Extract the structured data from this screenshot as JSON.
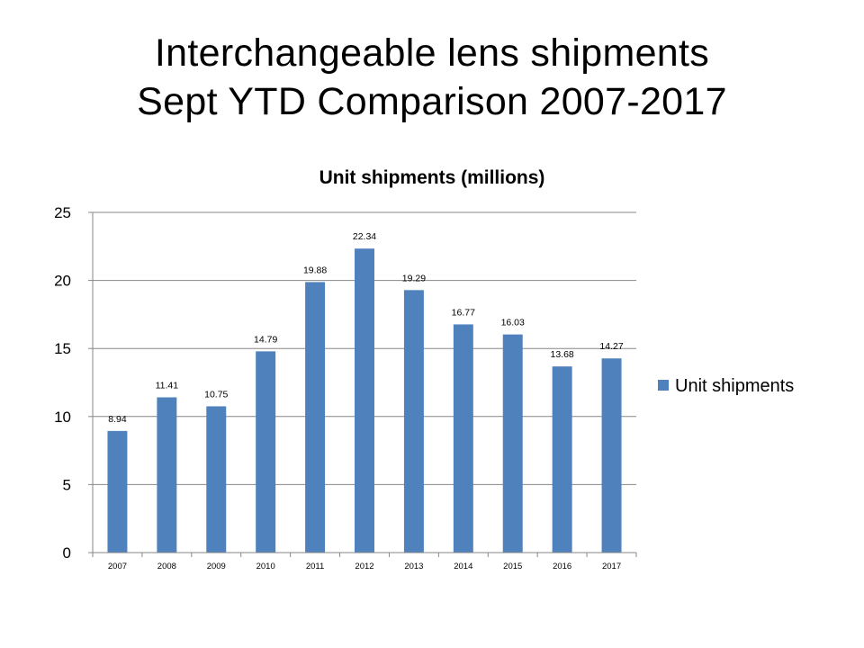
{
  "slide": {
    "title_line1": "Interchangeable lens shipments",
    "title_line2": "Sept YTD Comparison 2007-2017"
  },
  "colors": {
    "bar": "#4F81BD",
    "grid": "#878787",
    "axis": "#878787",
    "text": "#000000"
  },
  "chart_data": {
    "type": "bar",
    "title": "Unit shipments (millions)",
    "categories": [
      "2007",
      "2008",
      "2009",
      "2010",
      "2011",
      "2012",
      "2013",
      "2014",
      "2015",
      "2016",
      "2017"
    ],
    "series": [
      {
        "name": "Unit shipments",
        "values": [
          8.94,
          11.41,
          10.75,
          14.79,
          19.88,
          22.34,
          19.29,
          16.77,
          16.03,
          13.68,
          14.27
        ],
        "labels": [
          "8.94",
          "11.41",
          "10.75",
          "14.79",
          "19.88",
          "22.34",
          "19.29",
          "16.77",
          "16.03",
          "13.68",
          "14.27"
        ]
      }
    ],
    "ylim": [
      0,
      25
    ],
    "yticks": [
      0,
      5,
      10,
      15,
      20,
      25
    ],
    "grid": true,
    "legend_position": "right",
    "xlabel": "",
    "ylabel": ""
  }
}
